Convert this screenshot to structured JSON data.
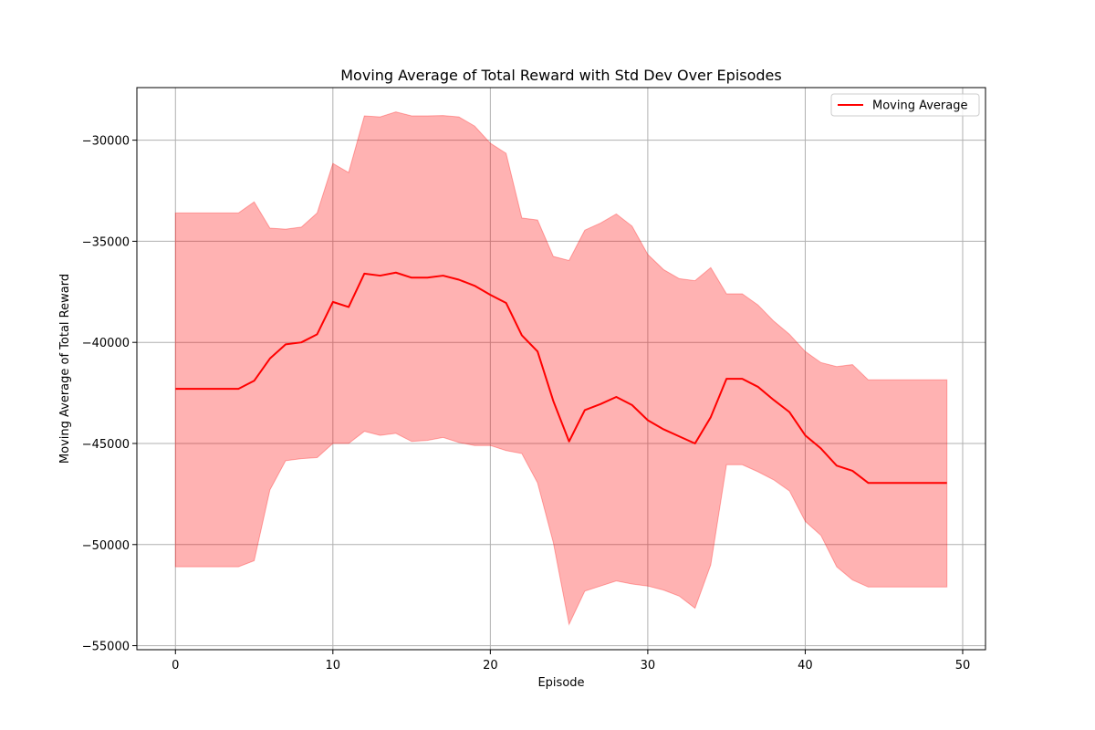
{
  "chart_data": {
    "type": "line",
    "title": "Moving Average of Total Reward with Std Dev Over Episodes",
    "xlabel": "Episode",
    "ylabel": "Moving Average of Total Reward",
    "xlim": [
      -2.45,
      51.45
    ],
    "ylim": [
      -55200,
      -27400
    ],
    "xticks": [
      0,
      10,
      20,
      30,
      40,
      50
    ],
    "yticks": [
      -55000,
      -50000,
      -45000,
      -40000,
      -35000,
      -30000
    ],
    "xtick_labels": [
      "0",
      "10",
      "20",
      "30",
      "40",
      "50"
    ],
    "ytick_labels": [
      "−55000",
      "−50000",
      "−45000",
      "−40000",
      "−35000",
      "−30000"
    ],
    "grid": true,
    "legend_position": "top-right",
    "x": [
      0,
      1,
      2,
      3,
      4,
      5,
      6,
      7,
      8,
      9,
      10,
      11,
      12,
      13,
      14,
      15,
      16,
      17,
      18,
      19,
      20,
      21,
      22,
      23,
      24,
      25,
      26,
      27,
      28,
      29,
      30,
      31,
      32,
      33,
      34,
      35,
      36,
      37,
      38,
      39,
      40,
      41,
      42,
      43,
      44,
      45,
      46,
      47,
      48,
      49
    ],
    "series": [
      {
        "name": "Moving Average",
        "color": "#ff0000",
        "values": [
          -42300,
          -42300,
          -42300,
          -42300,
          -42300,
          -41900,
          -40800,
          -40100,
          -40000,
          -39600,
          -38000,
          -38250,
          -36600,
          -36700,
          -36550,
          -36800,
          -36800,
          -36700,
          -36900,
          -37200,
          -37650,
          -38050,
          -39650,
          -40450,
          -42900,
          -44900,
          -43350,
          -43050,
          -42700,
          -43100,
          -43850,
          -44300,
          -44650,
          -45000,
          -43700,
          -41800,
          -41800,
          -42200,
          -42850,
          -43450,
          -44600,
          -45250,
          -46100,
          -46350,
          -46950,
          -46950,
          -46950,
          -46950,
          -46950,
          -46950
        ]
      }
    ],
    "band": {
      "color": "#ff0000",
      "opacity": 0.3,
      "upper": [
        -33600,
        -33600,
        -33600,
        -33600,
        -33600,
        -33050,
        -34350,
        -34400,
        -34300,
        -33600,
        -31150,
        -31600,
        -28800,
        -28850,
        -28600,
        -28800,
        -28800,
        -28780,
        -28850,
        -29300,
        -30150,
        -30650,
        -33850,
        -33950,
        -35750,
        -35950,
        -34450,
        -34100,
        -33650,
        -34250,
        -35650,
        -36400,
        -36850,
        -36950,
        -36300,
        -37600,
        -37600,
        -38150,
        -38950,
        -39600,
        -40450,
        -41000,
        -41200,
        -41100,
        -41850,
        -41850,
        -41850,
        -41850,
        -41850,
        -41850
      ],
      "lower": [
        -51100,
        -51100,
        -51100,
        -51100,
        -51100,
        -50800,
        -47300,
        -45850,
        -45750,
        -45700,
        -45000,
        -45000,
        -44400,
        -44600,
        -44500,
        -44900,
        -44850,
        -44700,
        -44950,
        -45100,
        -45100,
        -45350,
        -45500,
        -46950,
        -49900,
        -53950,
        -52300,
        -52050,
        -51800,
        -51950,
        -52050,
        -52250,
        -52550,
        -53150,
        -51000,
        -46050,
        -46050,
        -46400,
        -46800,
        -47350,
        -48850,
        -49550,
        -51100,
        -51750,
        -52100,
        -52100,
        -52100,
        -52100,
        -52100,
        -52100
      ]
    },
    "legend": [
      {
        "label": "Moving Average",
        "color": "#ff0000"
      }
    ]
  }
}
